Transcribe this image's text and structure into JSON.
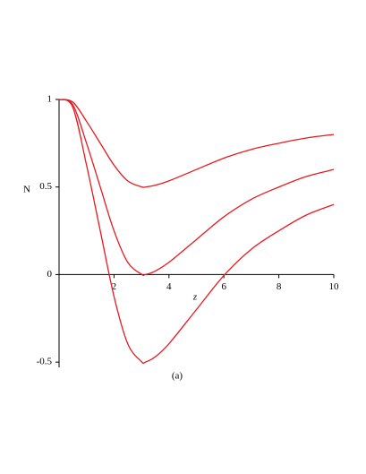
{
  "chart_data": {
    "type": "line",
    "x_label": "z",
    "y_label": "N",
    "caption": "(a)",
    "x": [
      0,
      0.5,
      1,
      1.5,
      2,
      2.5,
      3,
      3.14,
      3.5,
      4,
      5,
      6,
      7,
      8,
      9,
      10
    ],
    "series": [
      {
        "color": "#e8191f",
        "values": [
          1,
          0.985,
          0.875,
          0.75,
          0.625,
          0.535,
          0.501,
          0.5,
          0.51,
          0.535,
          0.6,
          0.665,
          0.715,
          0.75,
          0.78,
          0.8
        ]
      },
      {
        "color": "#e8191f",
        "values": [
          1,
          0.97,
          0.75,
          0.5,
          0.25,
          0.07,
          0.002,
          0,
          0.02,
          0.07,
          0.2,
          0.33,
          0.43,
          0.5,
          0.56,
          0.6
        ]
      },
      {
        "color": "#e8191f",
        "values": [
          1,
          0.955,
          0.625,
          0.25,
          -0.125,
          -0.395,
          -0.497,
          -0.5,
          -0.47,
          -0.395,
          -0.2,
          -0.005,
          0.145,
          0.25,
          0.34,
          0.4
        ]
      }
    ],
    "xlim": [
      0,
      10
    ],
    "ylim": [
      -0.53,
      1
    ],
    "xticks": [
      2,
      4,
      6,
      8,
      10
    ],
    "yticks": [
      -0.5,
      0,
      0.5,
      1
    ],
    "grid": false
  }
}
